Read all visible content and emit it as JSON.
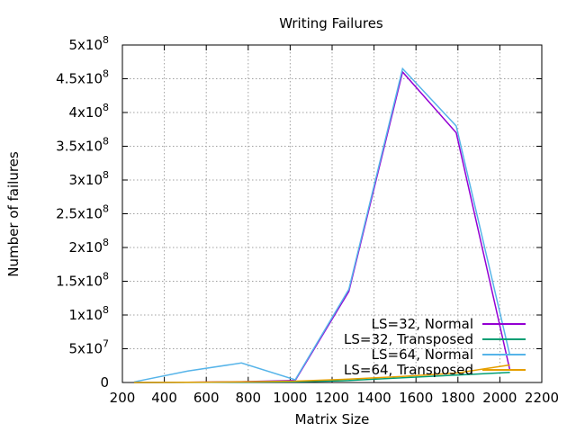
{
  "chart_data": {
    "type": "line",
    "title": "Writing Failures",
    "xlabel": "Matrix Size",
    "ylabel": "Number of failures",
    "xlim": [
      200,
      2200
    ],
    "ylim": [
      0,
      500000000
    ],
    "x_ticks": [
      200,
      400,
      600,
      800,
      1000,
      1200,
      1400,
      1600,
      1800,
      2000,
      2200
    ],
    "y_ticks": [
      {
        "value": 0,
        "mant": "0",
        "exp": ""
      },
      {
        "value": 50000000,
        "mant": "5x10",
        "exp": "7"
      },
      {
        "value": 100000000,
        "mant": "1x10",
        "exp": "8"
      },
      {
        "value": 150000000,
        "mant": "1.5x10",
        "exp": "8"
      },
      {
        "value": 200000000,
        "mant": "2x10",
        "exp": "8"
      },
      {
        "value": 250000000,
        "mant": "2.5x10",
        "exp": "8"
      },
      {
        "value": 300000000,
        "mant": "3x10",
        "exp": "8"
      },
      {
        "value": 350000000,
        "mant": "3.5x10",
        "exp": "8"
      },
      {
        "value": 400000000,
        "mant": "4x10",
        "exp": "8"
      },
      {
        "value": 450000000,
        "mant": "4.5x10",
        "exp": "8"
      },
      {
        "value": 500000000,
        "mant": "5x10",
        "exp": "8"
      }
    ],
    "grid": true,
    "legend_position": "bottom-right",
    "series": [
      {
        "name": "LS=32, Normal",
        "color": "#9400d3",
        "points": [
          [
            256,
            0
          ],
          [
            512,
            300000
          ],
          [
            768,
            1200000
          ],
          [
            1024,
            3000000
          ],
          [
            1280,
            135000000
          ],
          [
            1536,
            460000000
          ],
          [
            1792,
            370000000
          ],
          [
            2048,
            18000000
          ]
        ]
      },
      {
        "name": "LS=32, Transposed",
        "color": "#009e73",
        "points": [
          [
            256,
            0
          ],
          [
            512,
            200000
          ],
          [
            768,
            500000
          ],
          [
            1024,
            1000000
          ],
          [
            1280,
            3000000
          ],
          [
            1536,
            7000000
          ],
          [
            1792,
            11000000
          ],
          [
            2048,
            15000000
          ]
        ]
      },
      {
        "name": "LS=64, Normal",
        "color": "#56b4e9",
        "points": [
          [
            256,
            1000000
          ],
          [
            512,
            17000000
          ],
          [
            768,
            29000000
          ],
          [
            1024,
            4000000
          ],
          [
            1280,
            138000000
          ],
          [
            1536,
            465000000
          ],
          [
            1792,
            380000000
          ],
          [
            2048,
            40000000
          ]
        ]
      },
      {
        "name": "LS=64, Transposed",
        "color": "#e69f00",
        "points": [
          [
            256,
            0
          ],
          [
            512,
            300000
          ],
          [
            768,
            1000000
          ],
          [
            1024,
            2000000
          ],
          [
            1280,
            5000000
          ],
          [
            1536,
            9000000
          ],
          [
            1792,
            14000000
          ],
          [
            2048,
            26000000
          ]
        ]
      }
    ]
  }
}
